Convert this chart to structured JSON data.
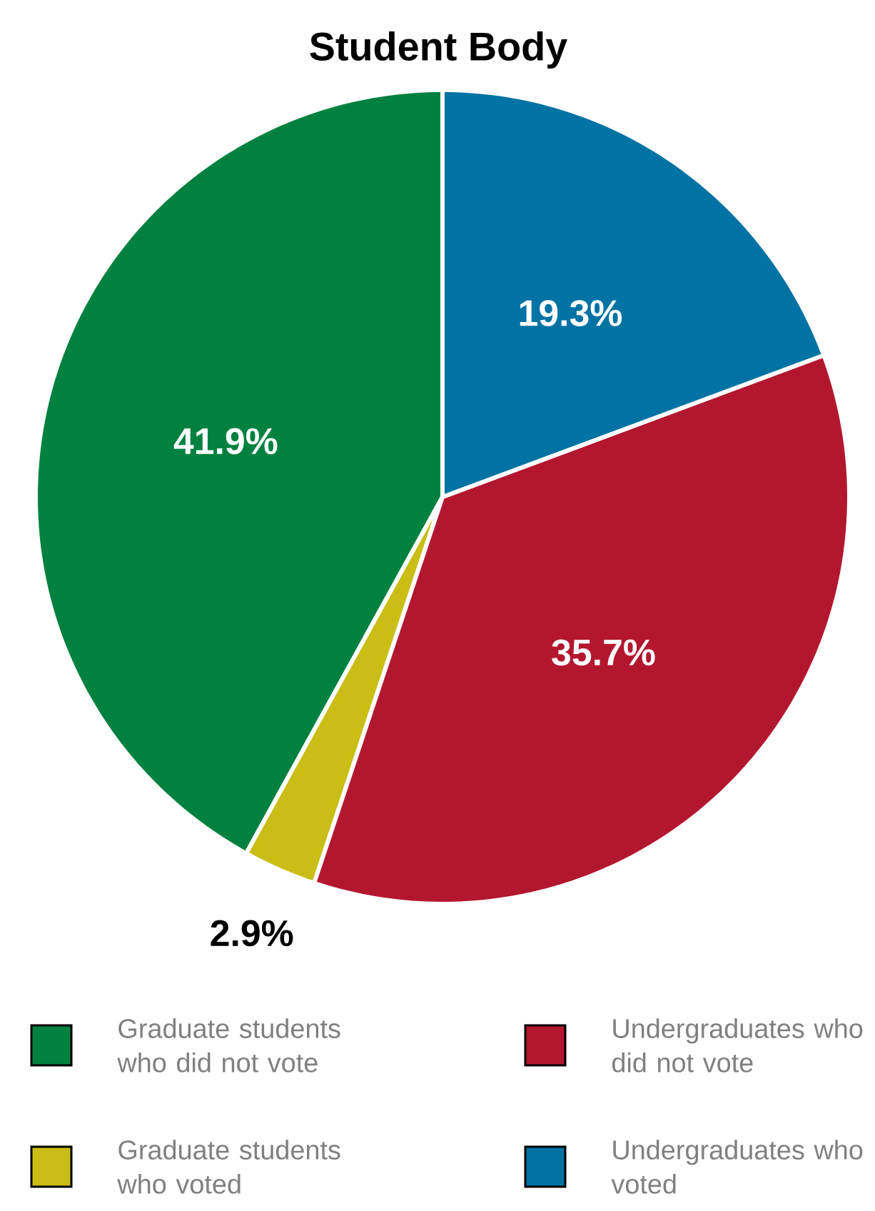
{
  "chart_data": {
    "type": "pie",
    "title": "Student Body",
    "categories": [
      "Graduate students who did not vote",
      "Graduate students who voted",
      "Undergraduates who did not vote",
      "Undergraduates who voted"
    ],
    "values": [
      41.9,
      2.9,
      35.7,
      19.3
    ],
    "value_labels": [
      "41.9%",
      "2.9%",
      "35.7%",
      "19.3%"
    ],
    "colors": [
      "#00813f",
      "#c9bd16",
      "#b3172f",
      "#0072a3"
    ],
    "legend": "bottom"
  }
}
